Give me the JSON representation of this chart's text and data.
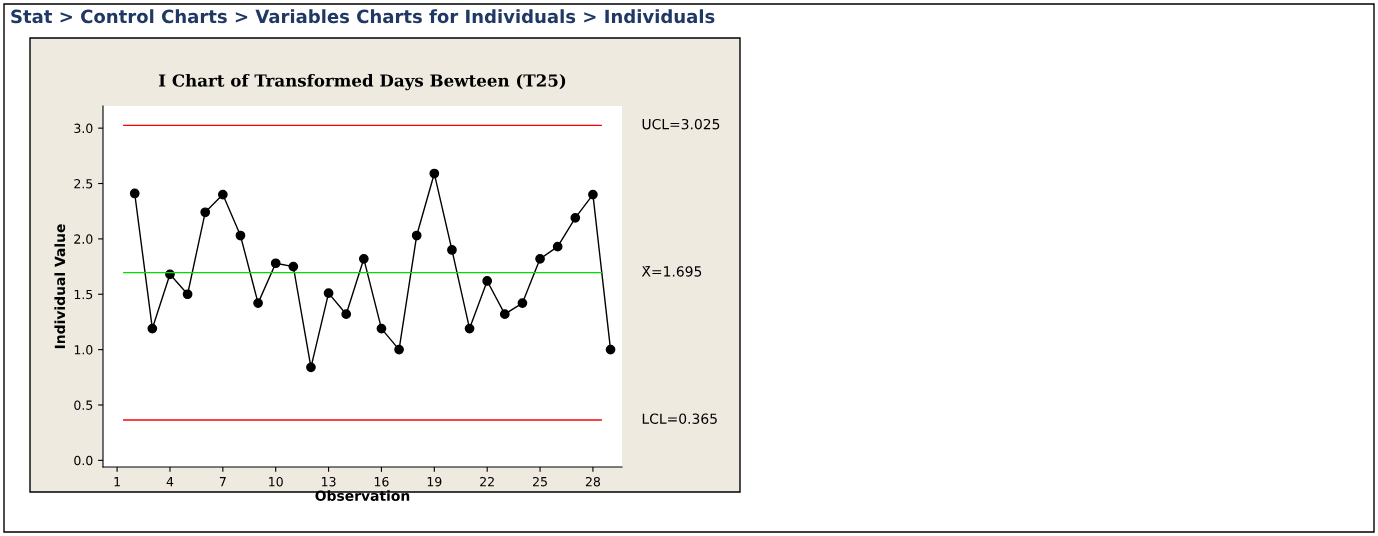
{
  "chart_data": {
    "type": "line",
    "title": "I Chart of Transformed Days Bewteen (T25)",
    "xlabel": "Observation",
    "ylabel": "Individual Value",
    "annotations": [
      "Stat > Control Charts > Variables Charts for Individuals > Individuals"
    ],
    "x": [
      2,
      3,
      4,
      5,
      6,
      7,
      8,
      9,
      10,
      11,
      12,
      13,
      14,
      15,
      16,
      17,
      18,
      19,
      20,
      21,
      22,
      23,
      24,
      25,
      26,
      27,
      28,
      29
    ],
    "series": [
      {
        "color": "#000000",
        "values": [
          2.41,
          1.19,
          1.68,
          1.5,
          2.24,
          2.4,
          2.03,
          1.42,
          1.78,
          1.75,
          0.84,
          1.51,
          1.32,
          1.82,
          1.19,
          1.0,
          2.03,
          2.59,
          1.9,
          1.19,
          1.62,
          1.32,
          1.42,
          1.82,
          1.93,
          2.19,
          2.4,
          1.0
        ]
      }
    ],
    "xlim": [
      0.2,
      29.65
    ],
    "xticks": [
      1,
      4,
      7,
      10,
      13,
      16,
      19,
      22,
      25,
      28
    ],
    "ylim": [
      -0.06,
      3.2
    ],
    "yticks": [
      {
        "value": 0,
        "label": "0.0"
      },
      {
        "value": 0.5,
        "label": "0.5"
      },
      {
        "value": 1,
        "label": "1.0"
      },
      {
        "value": 1.5,
        "label": "1.5"
      },
      {
        "value": 2,
        "label": "2.0"
      },
      {
        "value": 2.5,
        "label": "2.5"
      },
      {
        "value": 3,
        "label": "3.0"
      }
    ],
    "ref_lines": [
      {
        "axis": "y",
        "value": 3.025,
        "label": "UCL=3.025",
        "color": "#ff0000"
      },
      {
        "axis": "y",
        "value": 1.695,
        "label": "X̄=1.695",
        "color": "#00dd00"
      },
      {
        "axis": "y",
        "value": 0.365,
        "label": "LCL=0.365",
        "color": "#ff0000"
      }
    ],
    "marker": "circle",
    "line_style": "solid",
    "grid": false,
    "legend": false
  }
}
